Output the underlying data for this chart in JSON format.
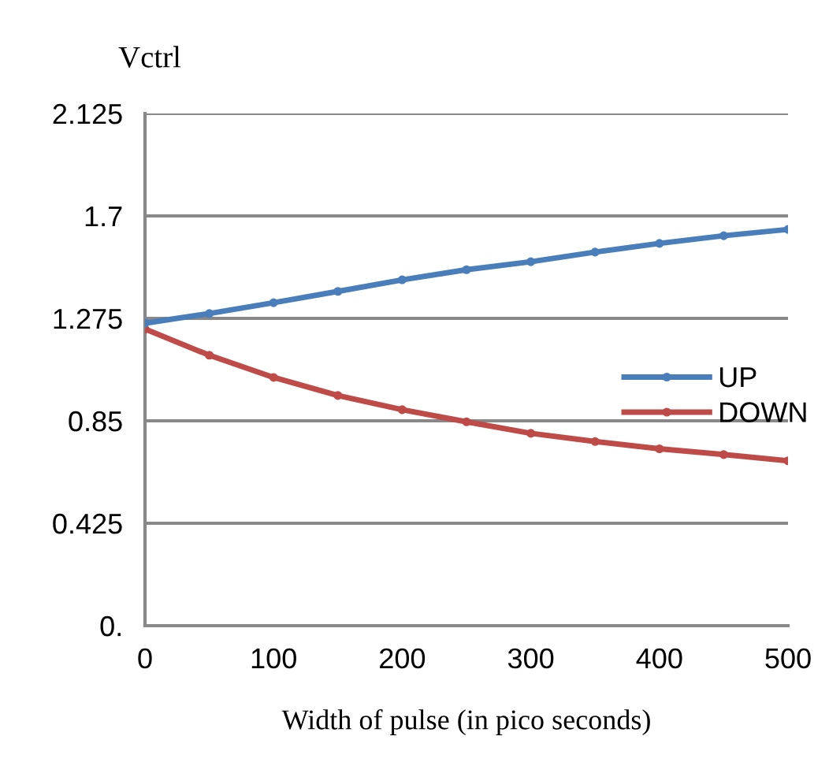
{
  "chart_data": {
    "type": "line",
    "ylabel": "Vctrl",
    "xlabel": "Width of pulse (in pico seconds)",
    "x": [
      0,
      50,
      100,
      150,
      200,
      250,
      300,
      350,
      400,
      450,
      500
    ],
    "series": [
      {
        "name": "UP",
        "color": "#4a7ebb",
        "values": [
          1.255,
          1.295,
          1.34,
          1.387,
          1.435,
          1.477,
          1.51,
          1.55,
          1.586,
          1.618,
          1.644
        ]
      },
      {
        "name": "DOWN",
        "color": "#be4b48",
        "values": [
          1.231,
          1.122,
          1.03,
          0.955,
          0.896,
          0.846,
          0.798,
          0.764,
          0.734,
          0.71,
          0.684
        ]
      }
    ],
    "xlim": [
      0,
      500
    ],
    "xticks": [
      0,
      100,
      200,
      300,
      400,
      500
    ],
    "ylim": [
      0,
      2.125
    ],
    "yticks": [
      {
        "value": 0,
        "label": "0."
      },
      0.425,
      0.85,
      1.275,
      1.7,
      2.125
    ],
    "grid": "y",
    "legend": "right",
    "marker": "circle",
    "line_style": "solid"
  }
}
